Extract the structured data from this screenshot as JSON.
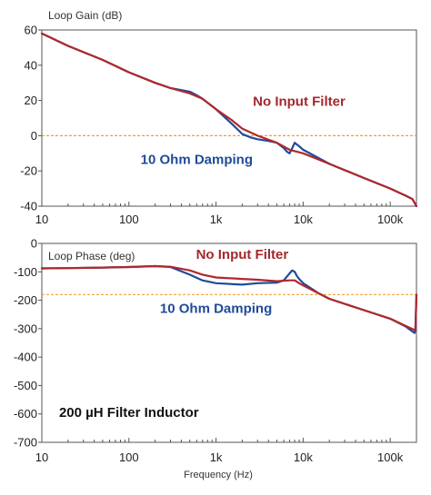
{
  "chart_data": [
    {
      "type": "line",
      "title": "Loop Gain (dB)",
      "xlabel": "",
      "ylabel": "",
      "xscale": "log",
      "xlim": [
        10,
        200000
      ],
      "ylim": [
        -40,
        60
      ],
      "xticks": [
        10,
        100,
        1000,
        10000,
        100000
      ],
      "xtick_labels": [
        "10",
        "100",
        "1k",
        "10k",
        "100k"
      ],
      "yticks": [
        60,
        40,
        20,
        0,
        -20,
        -40
      ],
      "ytick_labels": [
        "60",
        "40",
        "20",
        "0",
        "-20",
        "-40"
      ],
      "grid": false,
      "reference_line": {
        "y": 0,
        "color": "#f0a030",
        "style": "dashed"
      },
      "annotations": [
        {
          "text": "No Input Filter",
          "x": 9000,
          "y": 17,
          "color": "#a3282c"
        },
        {
          "text": "10 Ohm Damping",
          "x": 600,
          "y": -16,
          "color": "#1f4b99"
        }
      ],
      "series": [
        {
          "name": "No Input Filter",
          "color": "#b0282c",
          "x": [
            10,
            20,
            50,
            100,
            200,
            300,
            500,
            700,
            1000,
            1500,
            2000,
            3000,
            5000,
            7000,
            10000,
            20000,
            50000,
            100000,
            150000,
            180000,
            200000
          ],
          "y": [
            58,
            51,
            43,
            36,
            30,
            27,
            24,
            21,
            15,
            9,
            4,
            0,
            -4,
            -8,
            -10,
            -16,
            -24,
            -30,
            -34,
            -36,
            -40
          ]
        },
        {
          "name": "10 Ohm Damping",
          "color": "#1f4b99",
          "x": [
            10,
            20,
            50,
            100,
            200,
            300,
            500,
            600,
            700,
            1000,
            1500,
            2000,
            2500,
            3000,
            4000,
            5000,
            6000,
            6500,
            7000,
            7500,
            8000,
            9000,
            10000,
            20000,
            50000,
            100000,
            150000,
            180000,
            200000
          ],
          "y": [
            58,
            51,
            43,
            36,
            30,
            27,
            25,
            23,
            21,
            15,
            7,
            1,
            -1,
            -2,
            -3,
            -4,
            -7,
            -9,
            -10,
            -7,
            -4,
            -6,
            -8,
            -16,
            -24,
            -30,
            -34,
            -36,
            -40
          ]
        }
      ]
    },
    {
      "type": "line",
      "title": "Loop Phase (deg)",
      "xlabel": "Frequency (Hz)",
      "ylabel": "",
      "xscale": "log",
      "xlim": [
        10,
        200000
      ],
      "ylim": [
        -700,
        0
      ],
      "xticks": [
        10,
        100,
        1000,
        10000,
        100000
      ],
      "xtick_labels": [
        "10",
        "100",
        "1k",
        "10k",
        "100k"
      ],
      "yticks": [
        0,
        -100,
        -200,
        -300,
        -400,
        -500,
        -600,
        -700
      ],
      "ytick_labels": [
        "0",
        "-100",
        "-200",
        "-300",
        "-400",
        "-500",
        "-600",
        "-700"
      ],
      "grid": false,
      "reference_line": {
        "y": -180,
        "color": "#f0a030",
        "style": "dashed"
      },
      "annotations": [
        {
          "text": "No Input Filter",
          "x": 2000,
          "y": -55,
          "color": "#a3282c"
        },
        {
          "text": "10 Ohm Damping",
          "x": 1000,
          "y": -245,
          "color": "#1f4b99"
        },
        {
          "text": "200 µH Filter Inductor",
          "x": 100,
          "y": -610,
          "color": "#111111"
        }
      ],
      "series": [
        {
          "name": "No Input Filter",
          "color": "#b0282c",
          "x": [
            10,
            20,
            50,
            100,
            200,
            300,
            500,
            700,
            1000,
            2000,
            3000,
            5000,
            7000,
            8000,
            9000,
            10000,
            15000,
            20000,
            50000,
            100000,
            150000,
            190000,
            195000,
            200000
          ],
          "y": [
            -88,
            -87,
            -85,
            -83,
            -80,
            -82,
            -95,
            -110,
            -120,
            -125,
            -128,
            -133,
            -130,
            -130,
            -140,
            -148,
            -175,
            -195,
            -235,
            -265,
            -290,
            -305,
            -300,
            -180
          ]
        },
        {
          "name": "10 Ohm Damping",
          "color": "#1f4b99",
          "x": [
            10,
            20,
            50,
            100,
            200,
            300,
            500,
            700,
            1000,
            2000,
            3000,
            5000,
            6000,
            7000,
            7500,
            8000,
            8500,
            9000,
            10000,
            15000,
            20000,
            50000,
            100000,
            150000,
            180000,
            190000,
            195000,
            200000
          ],
          "y": [
            -88,
            -87,
            -85,
            -83,
            -80,
            -83,
            -110,
            -130,
            -140,
            -145,
            -140,
            -138,
            -130,
            -105,
            -95,
            -100,
            -115,
            -125,
            -140,
            -175,
            -195,
            -235,
            -265,
            -292,
            -310,
            -315,
            -300,
            -180
          ]
        }
      ]
    }
  ]
}
